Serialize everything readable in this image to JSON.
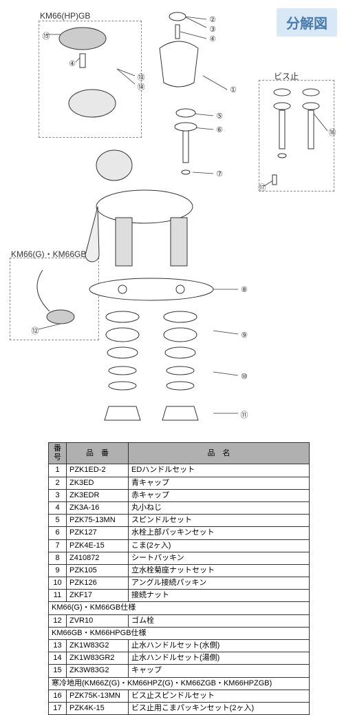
{
  "title_badge": "分解図",
  "labels": {
    "top_left": "KM66(HP)GB",
    "mid_left": "KM66(G)・KM66GB",
    "top_right": "ビス止"
  },
  "callouts": {
    "c1": "①",
    "c2": "②",
    "c3": "③",
    "c4a": "④",
    "c4b": "④",
    "c5": "⑤",
    "c6": "⑥",
    "c7": "⑦",
    "c8": "⑧",
    "c9": "⑨",
    "c10": "⑩",
    "c11": "⑪",
    "c12": "⑫",
    "c13": "⑬",
    "c14": "⑭",
    "c15": "⑮",
    "c16": "⑯",
    "c17": "⑰"
  },
  "table": {
    "headers": {
      "num": "番号",
      "code": "品　番",
      "name": "品　名"
    },
    "rows": [
      {
        "n": "1",
        "c": "PZK1ED-2",
        "d": "EDハンドルセット"
      },
      {
        "n": "2",
        "c": "ZK3ED",
        "d": "青キャップ"
      },
      {
        "n": "3",
        "c": "ZK3EDR",
        "d": "赤キャップ"
      },
      {
        "n": "4",
        "c": "ZK3A-16",
        "d": "丸小ねじ"
      },
      {
        "n": "5",
        "c": "PZK75-13MN",
        "d": "スピンドルセット"
      },
      {
        "n": "6",
        "c": "PZK127",
        "d": "水栓上部パッキンセット"
      },
      {
        "n": "7",
        "c": "PZK4E-15",
        "d": "こま(2ヶ入)"
      },
      {
        "n": "8",
        "c": "Z410872",
        "d": "シートパッキン"
      },
      {
        "n": "9",
        "c": "PZK105",
        "d": "立水栓菊座ナットセット"
      },
      {
        "n": "10",
        "c": "PZK126",
        "d": "アングル接続パッキン"
      },
      {
        "n": "11",
        "c": "ZKF17",
        "d": "接続ナット"
      }
    ],
    "spec1": "KM66(G)・KM66GB仕様",
    "rows2": [
      {
        "n": "12",
        "c": "ZVR10",
        "d": "ゴム栓"
      }
    ],
    "spec2": "KM66GB・KM66HPGB仕様",
    "rows3": [
      {
        "n": "13",
        "c": "ZK1W83G2",
        "d": "止水ハンドルセット(水側)"
      },
      {
        "n": "14",
        "c": "ZK1W83GR2",
        "d": "止水ハンドルセット(湯側)"
      },
      {
        "n": "15",
        "c": "ZK3W83G2",
        "d": "キャップ"
      }
    ],
    "spec3": "寒冷地用(KM66Z(G)・KM66HPZ(G)・KM66ZGB・KM66HPZGB)",
    "rows4": [
      {
        "n": "16",
        "c": "PZK75K-13MN",
        "d": "ビス止スピンドルセット"
      },
      {
        "n": "17",
        "c": "PZK4K-15",
        "d": "ビス止用こまパッキンセット(2ヶ入)"
      }
    ]
  },
  "colors": {
    "badge_bg": "#d9e8f5",
    "badge_fg": "#4a7baf",
    "header_bg": "#b0b0b0",
    "line": "#333333"
  }
}
